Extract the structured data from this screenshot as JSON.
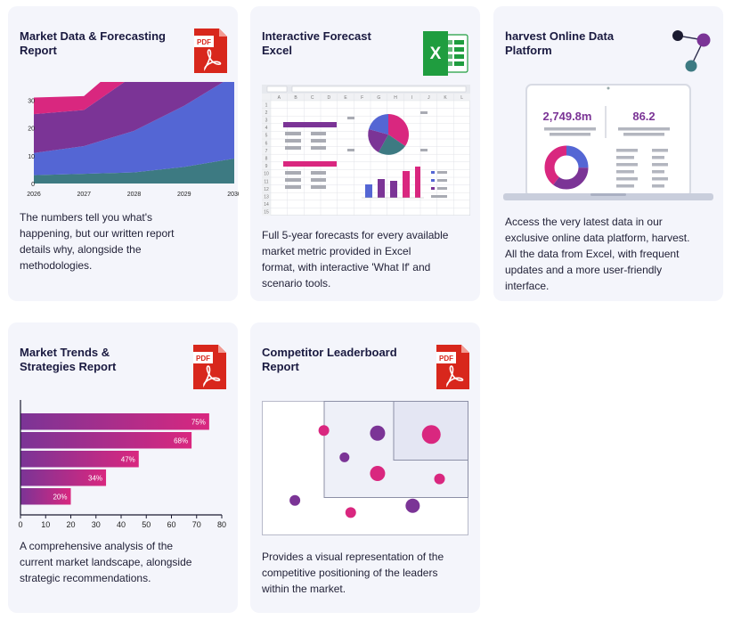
{
  "cards": [
    {
      "title": "Market Data & Forecasting Report",
      "title_lines": [
        "Market Data & Forecasting",
        "Report"
      ],
      "icon": "pdf-icon",
      "description_lines": [
        "The numbers tell you what's",
        "happening, but our written report",
        "details why, alongside the",
        "methodologies."
      ]
    },
    {
      "title": "Interactive Forecast Excel",
      "title_lines": [
        "Interactive Forecast",
        "Excel"
      ],
      "icon": "excel-icon",
      "description_lines": [
        "Full 5-year forecasts for every available",
        "market metric provided in Excel",
        "format, with interactive 'What If' and",
        "scenario tools."
      ]
    },
    {
      "title": "harvest Online Data Platform",
      "title_lines": [
        "harvest Online Data",
        "Platform"
      ],
      "icon": "network-icon",
      "description_lines": [
        "Access the very latest data in our",
        "exclusive online data platform, harvest.",
        "All the data from Excel, with frequent",
        "updates and a more user-friendly",
        "interface."
      ]
    },
    {
      "title": "Market Trends & Strategies Report",
      "title_lines": [
        "Market Trends &",
        "Strategies Report"
      ],
      "icon": "pdf-icon",
      "description_lines": [
        "A comprehensive analysis of the",
        "current market landscape, alongside",
        "strategic recommendations."
      ]
    },
    {
      "title": "Competitor Leaderboard Report",
      "title_lines": [
        "Competitor Leaderboard",
        "Report"
      ],
      "icon": "pdf-icon",
      "description_lines": [
        "Provides a visual representation of the",
        "competitive positioning of the leaders",
        "within the market."
      ]
    }
  ],
  "pdf_label": "PDF",
  "excel_label": "X",
  "harvest_stats": [
    "2,749.8m",
    "86.2"
  ],
  "excel_mock": {
    "col_headers": [
      "A",
      "B",
      "C",
      "D",
      "E",
      "F",
      "G",
      "H",
      "I",
      "J",
      "K",
      "L"
    ],
    "row_headers": [
      "1",
      "2",
      "3",
      "4",
      "5",
      "6",
      "7",
      "8",
      "9",
      "10",
      "11",
      "12",
      "13",
      "14",
      "15"
    ]
  },
  "chart_data": [
    {
      "type": "area",
      "x": [
        "2026",
        "2027",
        "2028",
        "2029",
        "2030"
      ],
      "ylim": [
        0,
        35
      ],
      "yticks": [
        0,
        10,
        20,
        30
      ],
      "series": [
        {
          "color": "#3d7a82",
          "values": [
            3,
            3.5,
            4,
            6,
            9
          ]
        },
        {
          "color": "#5466d4",
          "values": [
            8,
            10,
            15,
            22,
            30
          ]
        },
        {
          "color": "#7b3496",
          "values": [
            14,
            13,
            20,
            24,
            31
          ]
        },
        {
          "color": "#d9277f",
          "values": [
            6,
            5,
            8,
            8,
            11
          ]
        }
      ]
    },
    {
      "type": "bar",
      "orientation": "horizontal",
      "values": [
        75,
        68,
        47,
        34,
        20
      ],
      "labels": [
        "75%",
        "68%",
        "47%",
        "34%",
        "20%"
      ],
      "xlim": [
        0,
        80
      ],
      "xticks": [
        "0",
        "10",
        "20",
        "30",
        "40",
        "50",
        "60",
        "70",
        "80"
      ]
    },
    {
      "type": "scatter",
      "points": [
        {
          "x": 0.3,
          "y": 0.78,
          "size": 6,
          "color": "#d9277f"
        },
        {
          "x": 0.4,
          "y": 0.58,
          "size": 5.5,
          "color": "#7b3496"
        },
        {
          "x": 0.56,
          "y": 0.76,
          "size": 8.5,
          "color": "#7b3496"
        },
        {
          "x": 0.82,
          "y": 0.75,
          "size": 10.5,
          "color": "#d9277f"
        },
        {
          "x": 0.56,
          "y": 0.46,
          "size": 8.5,
          "color": "#d9277f"
        },
        {
          "x": 0.86,
          "y": 0.42,
          "size": 6,
          "color": "#d9277f"
        },
        {
          "x": 0.16,
          "y": 0.26,
          "size": 6,
          "color": "#7b3496"
        },
        {
          "x": 0.43,
          "y": 0.17,
          "size": 6,
          "color": "#d9277f"
        },
        {
          "x": 0.73,
          "y": 0.22,
          "size": 8,
          "color": "#7b3496"
        }
      ]
    }
  ],
  "colors": {
    "pdf_red": "#d8271c",
    "magenta": "#d9277f",
    "purple": "#7b3496",
    "blue": "#5466d4",
    "teal": "#3d7a82",
    "excel_green": "#1f9d3f"
  }
}
